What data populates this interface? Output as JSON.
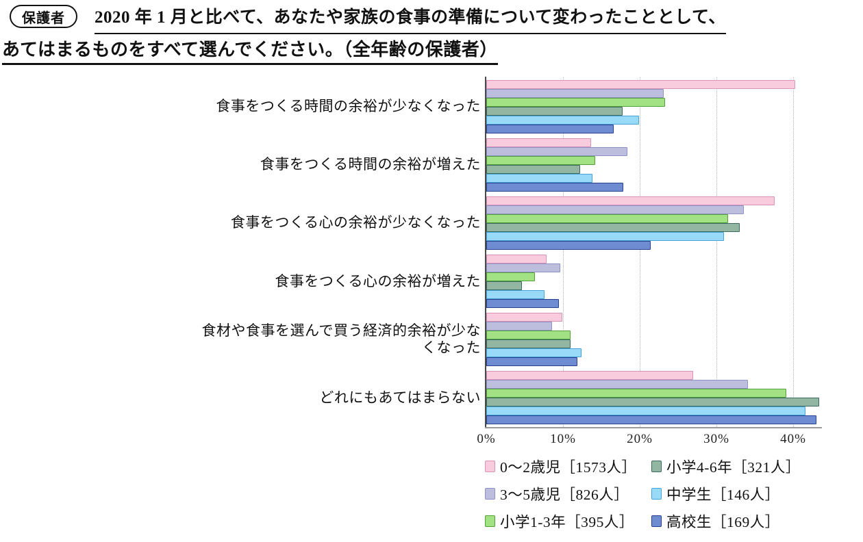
{
  "header": {
    "badge": "保護者",
    "title_line1": "2020 年 1 月と比べて、あなたや家族の食事の準備について変わったこととして、",
    "title_line2": "あてはまるものをすべて選んでください。（全年齢の保護者）"
  },
  "chart_data": {
    "type": "bar",
    "orientation": "horizontal",
    "title": "",
    "xlabel": "",
    "ylabel": "",
    "xlim": [
      0,
      45
    ],
    "x_ticks": [
      "0%",
      "10%",
      "20%",
      "30%",
      "40%"
    ],
    "x_tick_values": [
      0,
      10,
      20,
      30,
      40
    ],
    "grid": "vertical-dotted",
    "legend_position": "bottom-right",
    "categories": [
      "食事をつくる時間の余裕が少なくなった",
      "食事をつくる時間の余裕が増えた",
      "食事をつくる心の余裕が少なくなった",
      "食事をつくる心の余裕が増えた",
      "食材や食事を選んで買う経済的余裕が少なくなった",
      "どれにもあてはまらない"
    ],
    "series": [
      {
        "name": "0～2歳児",
        "count_label": "［1573人］",
        "fill": "#F8CCDD",
        "border": "#DA93B8",
        "values": [
          40.3,
          13.7,
          37.6,
          7.9,
          9.9,
          27.0
        ]
      },
      {
        "name": "3～5歳児",
        "count_label": "［826人］",
        "fill": "#BDBEDD",
        "border": "#8F90C5",
        "values": [
          23.1,
          18.4,
          33.6,
          9.6,
          8.6,
          34.1
        ]
      },
      {
        "name": "小学1-3年",
        "count_label": "［395人］",
        "fill": "#A2E285",
        "border": "#53A03A",
        "values": [
          23.3,
          14.2,
          31.5,
          6.3,
          11.0,
          39.1
        ]
      },
      {
        "name": "小学4-6年",
        "count_label": "［321人］",
        "fill": "#92B6A2",
        "border": "#3A6A5E",
        "values": [
          17.8,
          12.2,
          33.0,
          4.6,
          11.0,
          43.4
        ]
      },
      {
        "name": "中学生",
        "count_label": "［146人］",
        "fill": "#99DAF8",
        "border": "#47A2DA",
        "values": [
          19.9,
          13.8,
          31.0,
          7.6,
          12.4,
          41.6
        ]
      },
      {
        "name": "高校生",
        "count_label": "［169人］",
        "fill": "#6F8CD3",
        "border": "#25408D",
        "values": [
          16.6,
          17.9,
          21.4,
          9.5,
          11.9,
          43.0
        ]
      }
    ]
  }
}
